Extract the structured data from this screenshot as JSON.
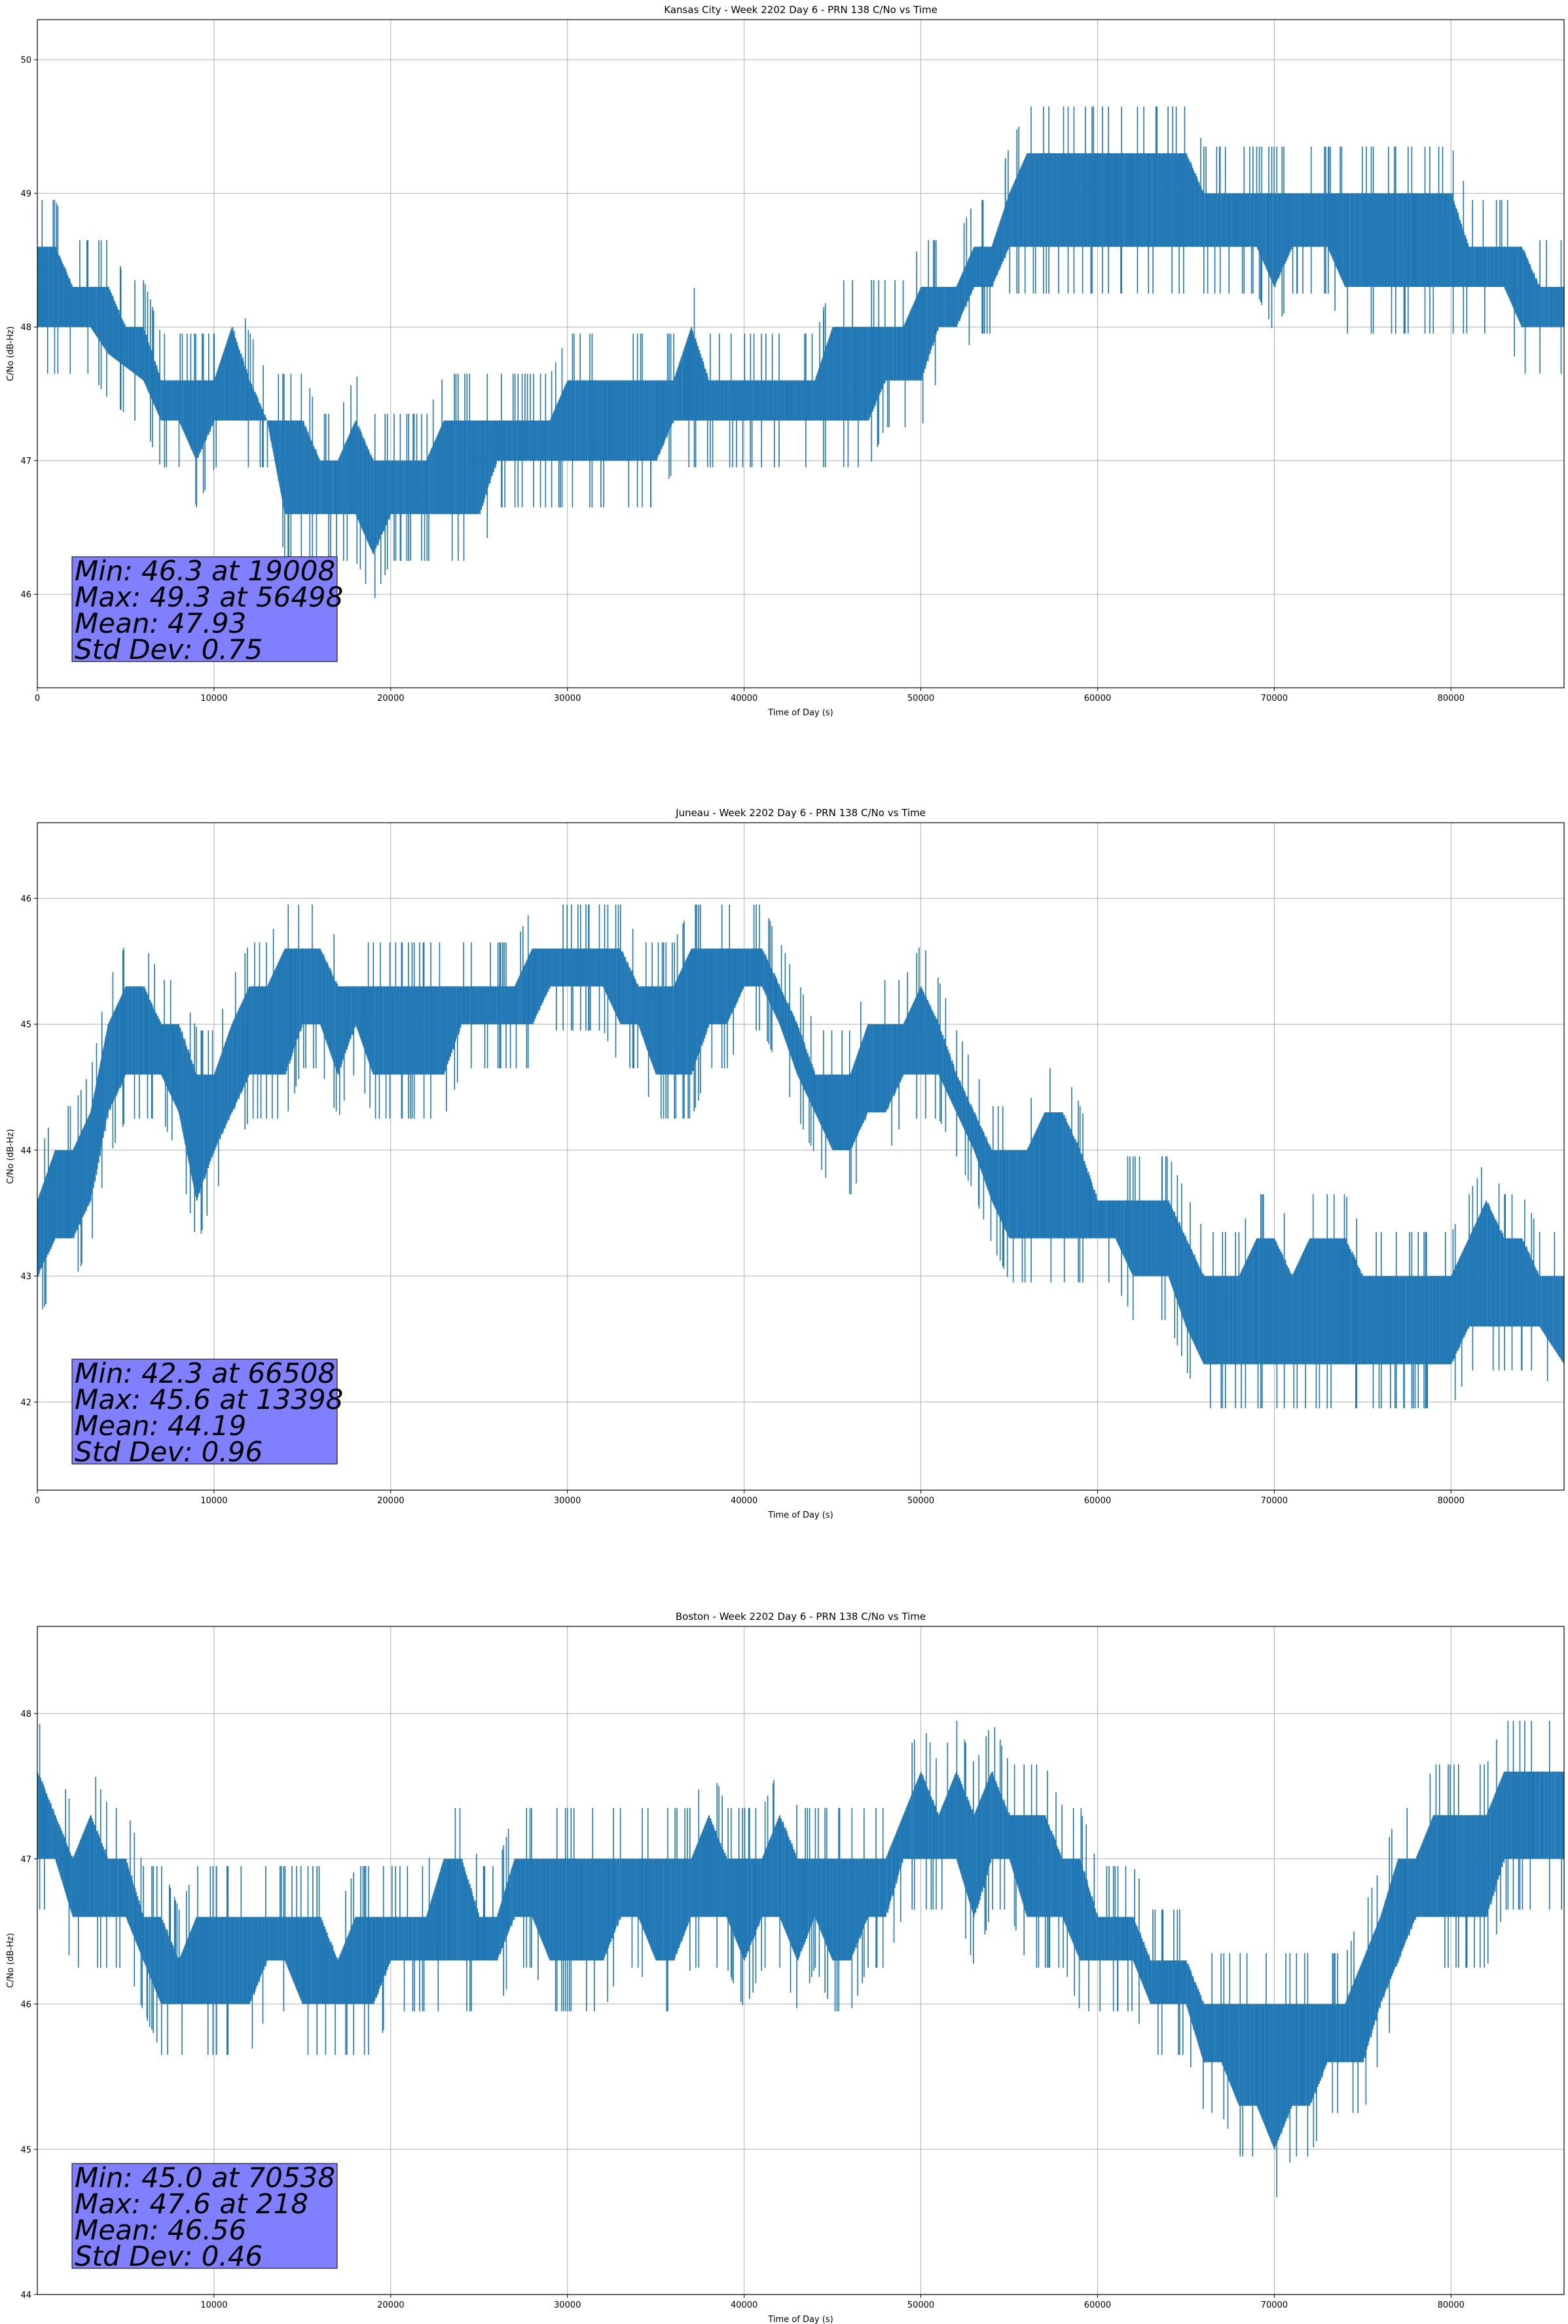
{
  "figure": {
    "background": "#ffffff",
    "series_color": "#1f77b4",
    "grid_color": "#b0b0b0",
    "stats_box_color": "#8080ff"
  },
  "chart_data": [
    {
      "type": "line",
      "title": "Kansas City - Week 2202 Day 6 - PRN 138 C/No vs Time",
      "xlabel": "Time of Day (s)",
      "ylabel": "C/No (dB-Hz)",
      "xlim": [
        0,
        86400
      ],
      "ylim": [
        45.3,
        50.3
      ],
      "xticks": [
        0,
        10000,
        20000,
        30000,
        40000,
        50000,
        60000,
        70000,
        80000
      ],
      "yticks": [
        46,
        47,
        48,
        49,
        50
      ],
      "grid": true,
      "stats": {
        "min": "Min: 46.3 at 19008",
        "max": "Max: 49.3 at 56498",
        "mean": "Mean: 47.93",
        "std": "Std Dev: 0.75"
      },
      "series": [
        {
          "x": [
            0,
            1000,
            2000,
            3000,
            4000,
            5000,
            6000,
            7000,
            8000,
            9000,
            10000,
            11000,
            12000,
            13000,
            14000,
            15000,
            16000,
            17000,
            18000,
            19000,
            20000,
            21000,
            22000,
            23000,
            24000,
            25000,
            26000,
            27000,
            28000,
            29000,
            30000,
            31000,
            32000,
            33000,
            34000,
            35000,
            36000,
            37000,
            38000,
            39000,
            40000,
            41000,
            42000,
            43000,
            44000,
            45000,
            46000,
            47000,
            48000,
            49000,
            50000,
            51000,
            52000,
            53000,
            54000,
            55000,
            56000,
            57000,
            58000,
            59000,
            60000,
            61000,
            62000,
            63000,
            64000,
            65000,
            66000,
            67000,
            68000,
            69000,
            70000,
            71000,
            72000,
            73000,
            74000,
            75000,
            76000,
            77000,
            78000,
            79000,
            80000,
            81000,
            82000,
            83000,
            84000,
            85000,
            86400
          ],
          "low": [
            48.0,
            48.0,
            48.0,
            48.0,
            47.8,
            47.7,
            47.6,
            47.3,
            47.3,
            47.0,
            47.3,
            47.3,
            47.3,
            47.3,
            46.6,
            46.6,
            46.6,
            46.6,
            46.6,
            46.3,
            46.6,
            46.6,
            46.6,
            46.6,
            46.6,
            46.6,
            47.0,
            47.0,
            47.0,
            47.0,
            47.0,
            47.0,
            47.0,
            47.0,
            47.0,
            47.0,
            47.3,
            47.3,
            47.3,
            47.3,
            47.3,
            47.3,
            47.3,
            47.3,
            47.3,
            47.3,
            47.3,
            47.3,
            47.6,
            47.6,
            47.6,
            48.0,
            48.0,
            48.3,
            48.3,
            48.6,
            48.6,
            48.6,
            48.6,
            48.6,
            48.6,
            48.6,
            48.6,
            48.6,
            48.6,
            48.6,
            48.6,
            48.6,
            48.6,
            48.6,
            48.3,
            48.6,
            48.6,
            48.6,
            48.3,
            48.3,
            48.3,
            48.3,
            48.3,
            48.3,
            48.3,
            48.3,
            48.3,
            48.3,
            48.0,
            48.0,
            48.0
          ],
          "high": [
            48.6,
            48.6,
            48.3,
            48.3,
            48.3,
            48.0,
            48.0,
            47.6,
            47.6,
            47.6,
            47.6,
            48.0,
            47.6,
            47.3,
            47.3,
            47.3,
            47.0,
            47.0,
            47.3,
            47.0,
            47.0,
            47.0,
            47.0,
            47.3,
            47.3,
            47.3,
            47.3,
            47.3,
            47.3,
            47.3,
            47.6,
            47.6,
            47.6,
            47.6,
            47.6,
            47.6,
            47.6,
            48.0,
            47.6,
            47.6,
            47.6,
            47.6,
            47.6,
            47.6,
            47.6,
            48.0,
            48.0,
            48.0,
            48.0,
            48.0,
            48.3,
            48.3,
            48.3,
            48.6,
            48.6,
            49.0,
            49.3,
            49.3,
            49.3,
            49.3,
            49.3,
            49.3,
            49.3,
            49.3,
            49.3,
            49.3,
            49.0,
            49.0,
            49.0,
            49.0,
            49.0,
            49.0,
            49.0,
            49.0,
            49.0,
            49.0,
            49.0,
            49.0,
            49.0,
            49.0,
            49.0,
            48.6,
            48.6,
            48.6,
            48.6,
            48.3,
            48.3
          ]
        }
      ]
    },
    {
      "type": "line",
      "title": "Juneau - Week 2202 Day 6 - PRN 138 C/No vs Time",
      "xlabel": "Time of Day (s)",
      "ylabel": "C/No (dB-Hz)",
      "xlim": [
        0,
        86400
      ],
      "ylim": [
        41.3,
        46.6
      ],
      "xticks": [
        0,
        10000,
        20000,
        30000,
        40000,
        50000,
        60000,
        70000,
        80000
      ],
      "yticks": [
        42,
        43,
        44,
        45,
        46
      ],
      "grid": true,
      "stats": {
        "min": "Min: 42.3 at 66508",
        "max": "Max: 45.6 at 13398",
        "mean": "Mean: 44.19",
        "std": "Std Dev: 0.96"
      },
      "series": [
        {
          "x": [
            0,
            1000,
            2000,
            3000,
            4000,
            5000,
            6000,
            7000,
            8000,
            9000,
            10000,
            11000,
            12000,
            13000,
            14000,
            15000,
            16000,
            17000,
            18000,
            19000,
            20000,
            21000,
            22000,
            23000,
            24000,
            25000,
            26000,
            27000,
            28000,
            29000,
            30000,
            31000,
            32000,
            33000,
            34000,
            35000,
            36000,
            37000,
            38000,
            39000,
            40000,
            41000,
            42000,
            43000,
            44000,
            45000,
            46000,
            47000,
            48000,
            49000,
            50000,
            51000,
            52000,
            53000,
            54000,
            55000,
            56000,
            57000,
            58000,
            59000,
            60000,
            61000,
            62000,
            63000,
            64000,
            65000,
            66000,
            67000,
            68000,
            69000,
            70000,
            71000,
            72000,
            73000,
            74000,
            75000,
            76000,
            77000,
            78000,
            79000,
            80000,
            81000,
            82000,
            83000,
            84000,
            85000,
            86400
          ],
          "low": [
            43.0,
            43.3,
            43.3,
            43.6,
            44.3,
            44.6,
            44.6,
            44.6,
            44.3,
            43.6,
            44.0,
            44.3,
            44.6,
            44.6,
            44.6,
            45.0,
            45.0,
            44.6,
            45.0,
            44.6,
            44.6,
            44.6,
            44.6,
            44.6,
            45.0,
            45.0,
            45.0,
            45.0,
            45.0,
            45.3,
            45.3,
            45.3,
            45.3,
            45.0,
            45.0,
            44.6,
            44.6,
            44.6,
            45.0,
            45.0,
            45.3,
            45.3,
            45.0,
            44.6,
            44.3,
            44.0,
            44.0,
            44.3,
            44.3,
            44.6,
            44.6,
            44.6,
            44.3,
            44.0,
            43.6,
            43.3,
            43.3,
            43.3,
            43.3,
            43.3,
            43.3,
            43.3,
            43.0,
            43.0,
            43.0,
            42.6,
            42.3,
            42.3,
            42.3,
            42.3,
            42.3,
            42.3,
            42.3,
            42.3,
            42.3,
            42.3,
            42.3,
            42.3,
            42.3,
            42.3,
            42.3,
            42.6,
            42.6,
            42.6,
            42.6,
            42.6,
            42.3
          ],
          "high": [
            43.6,
            44.0,
            44.0,
            44.3,
            45.0,
            45.3,
            45.3,
            45.0,
            45.0,
            44.6,
            44.6,
            45.0,
            45.3,
            45.3,
            45.6,
            45.6,
            45.6,
            45.3,
            45.3,
            45.3,
            45.3,
            45.3,
            45.3,
            45.3,
            45.3,
            45.3,
            45.3,
            45.3,
            45.6,
            45.6,
            45.6,
            45.6,
            45.6,
            45.6,
            45.3,
            45.3,
            45.3,
            45.6,
            45.6,
            45.6,
            45.6,
            45.6,
            45.3,
            45.0,
            44.6,
            44.6,
            44.6,
            45.0,
            45.0,
            45.0,
            45.3,
            45.0,
            44.6,
            44.3,
            44.0,
            44.0,
            44.0,
            44.3,
            44.3,
            44.0,
            43.6,
            43.6,
            43.6,
            43.6,
            43.6,
            43.3,
            43.0,
            43.0,
            43.0,
            43.3,
            43.3,
            43.0,
            43.3,
            43.3,
            43.3,
            43.0,
            43.0,
            43.0,
            43.0,
            43.0,
            43.0,
            43.3,
            43.6,
            43.3,
            43.3,
            43.0,
            43.0
          ]
        }
      ]
    },
    {
      "type": "line",
      "title": "Boston - Week 2202 Day 6 - PRN 138 C/No vs Time",
      "xlabel": "Time of Day (s)",
      "ylabel": "C/No (dB-Hz)",
      "xlim": [
        0,
        86400
      ],
      "ylim": [
        44.0,
        48.6
      ],
      "xticks": [
        10000,
        20000,
        30000,
        40000,
        50000,
        60000,
        70000,
        80000
      ],
      "yticks": [
        44,
        45,
        46,
        47,
        48
      ],
      "grid": true,
      "stats": {
        "min": "Min: 45.0 at 70538",
        "max": "Max: 47.6 at 218",
        "mean": "Mean: 46.56",
        "std": "Std Dev: 0.46"
      },
      "series": [
        {
          "x": [
            0,
            1000,
            2000,
            3000,
            4000,
            5000,
            6000,
            7000,
            8000,
            9000,
            10000,
            11000,
            12000,
            13000,
            14000,
            15000,
            16000,
            17000,
            18000,
            19000,
            20000,
            21000,
            22000,
            23000,
            24000,
            25000,
            26000,
            27000,
            28000,
            29000,
            30000,
            31000,
            32000,
            33000,
            34000,
            35000,
            36000,
            37000,
            38000,
            39000,
            40000,
            41000,
            42000,
            43000,
            44000,
            45000,
            46000,
            47000,
            48000,
            49000,
            50000,
            51000,
            52000,
            53000,
            54000,
            55000,
            56000,
            57000,
            58000,
            59000,
            60000,
            61000,
            62000,
            63000,
            64000,
            65000,
            66000,
            67000,
            68000,
            69000,
            70000,
            71000,
            72000,
            73000,
            74000,
            75000,
            76000,
            77000,
            78000,
            79000,
            80000,
            81000,
            82000,
            83000,
            84000,
            85000,
            86400
          ],
          "low": [
            47.0,
            47.0,
            46.6,
            46.6,
            46.6,
            46.6,
            46.3,
            46.0,
            46.0,
            46.0,
            46.0,
            46.0,
            46.0,
            46.3,
            46.3,
            46.0,
            46.0,
            46.0,
            46.0,
            46.0,
            46.3,
            46.3,
            46.3,
            46.3,
            46.3,
            46.3,
            46.3,
            46.6,
            46.6,
            46.3,
            46.3,
            46.3,
            46.3,
            46.6,
            46.6,
            46.3,
            46.3,
            46.6,
            46.6,
            46.6,
            46.3,
            46.6,
            46.6,
            46.3,
            46.6,
            46.3,
            46.3,
            46.6,
            46.6,
            47.0,
            47.0,
            47.0,
            47.0,
            46.6,
            47.0,
            47.0,
            46.6,
            46.6,
            46.6,
            46.3,
            46.3,
            46.3,
            46.3,
            46.0,
            46.0,
            46.0,
            45.6,
            45.6,
            45.3,
            45.3,
            45.0,
            45.3,
            45.3,
            45.6,
            45.6,
            45.6,
            46.0,
            46.3,
            46.6,
            46.6,
            46.6,
            46.6,
            46.6,
            47.0,
            47.0,
            47.0,
            47.0
          ],
          "high": [
            47.6,
            47.3,
            47.0,
            47.3,
            47.0,
            47.0,
            46.6,
            46.6,
            46.3,
            46.6,
            46.6,
            46.6,
            46.6,
            46.6,
            46.6,
            46.6,
            46.6,
            46.3,
            46.6,
            46.6,
            46.6,
            46.6,
            46.6,
            47.0,
            47.0,
            46.6,
            46.6,
            47.0,
            47.0,
            47.0,
            47.0,
            47.0,
            47.0,
            47.0,
            47.0,
            47.0,
            47.0,
            47.0,
            47.3,
            47.0,
            47.0,
            47.0,
            47.3,
            47.0,
            47.0,
            47.0,
            47.0,
            47.0,
            47.0,
            47.3,
            47.6,
            47.3,
            47.6,
            47.3,
            47.6,
            47.3,
            47.3,
            47.3,
            47.0,
            47.0,
            46.6,
            46.6,
            46.6,
            46.3,
            46.3,
            46.3,
            46.0,
            46.0,
            46.0,
            46.0,
            46.0,
            46.0,
            46.0,
            46.0,
            46.0,
            46.3,
            46.6,
            47.0,
            47.0,
            47.3,
            47.3,
            47.3,
            47.3,
            47.6,
            47.6,
            47.6,
            47.6
          ]
        }
      ]
    }
  ]
}
